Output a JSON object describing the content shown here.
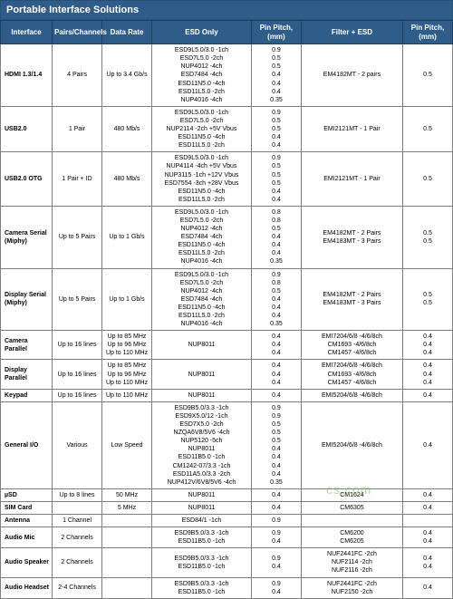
{
  "title": "Portable Interface Solutions",
  "columns": [
    "Interface",
    "Pairs/Channels",
    "Data Rate",
    "ESD Only",
    "Pin Pitch, (mm)",
    "Filter + ESD",
    "Pin Pitch, (mm)"
  ],
  "rows": [
    {
      "iface": "HDMI 1.3/1.4",
      "pairs": "4 Pairs",
      "rate": "Up to 3.4 Gb/s",
      "esd": "ESD9L5.0/3.0 -1ch\nESD7L5.0 -2ch\nNUP4012 -4ch\nESD7484 -4ch\nESD11N5.0 -4ch\nESD11L5.0 -2ch\nNUP4016 -4ch",
      "pin1": "0.9\n0.5\n0.5\n0.4\n0.4\n0.4\n0.35",
      "filter": "EM4182MT - 2 pairs",
      "pin2": "0.5"
    },
    {
      "iface": "USB2.0",
      "pairs": "1 Pair",
      "rate": "480 Mb/s",
      "esd": "ESD9L5.0/3.0 -1ch\nESD7L5.0 -2ch\nNUP2114 -2ch +5V Vbus\nESD11N5.0 -4ch\nESD11L5.0 -2ch",
      "pin1": "0.9\n0.5\n0.5\n0.4\n0.4",
      "filter": "EMI2121MT - 1 Pair",
      "pin2": "0.5"
    },
    {
      "iface": "USB2.0 OTG",
      "pairs": "1 Pair + ID",
      "rate": "480 Mb/s",
      "esd": "ESD9L5.0/3.0 -1ch\nNUP4114 -4ch +5V Vbus\nNUP3115 -1ch +12V Vbus\nESD7554 -3ch +28V Vbus\nESD11N5.0 -4ch\nESD11L5.0 -2ch",
      "pin1": "0.9\n0.5\n0.5\n0.5\n0.4\n0.4",
      "filter": "EMI2121MT - 1 Pair",
      "pin2": "0.5"
    },
    {
      "iface": "Camera Serial\n(Miphy)",
      "pairs": "Up to 5 Pairs",
      "rate": "Up to 1 Gb/s",
      "esd": "ESD9L5.0/3.0 -1ch\nESD7L5.0 -2ch\nNUP4012 -4ch\nESD7484 -4ch\nESD11N5.0 -4ch\nESD11L5.0 -2ch\nNUP4016 -4ch",
      "pin1": "0.8\n0.8\n0.5\n0.4\n0.4\n0.4\n0.35",
      "filter": "EM4182MT - 2 Pairs\nEM4183MT - 3 Pairs",
      "pin2": "0.5\n0.5"
    },
    {
      "iface": "Display Serial\n(Miphy)",
      "pairs": "Up to 5 Pairs",
      "rate": "Up to 1 Gb/s",
      "esd": "ESD9L5.0/3.0 -1ch\nESD7L5.0 -2ch\nNUP4012 -4ch\nESD7484 -4ch\nESD11N5.0 -4ch\nESD11L5.0 -2ch\nNUP4016 -4ch",
      "pin1": "0.9\n0.8\n0.5\n0.4\n0.4\n0.4\n0.35",
      "filter": "EM4182MT - 2 Pairs\nEM4183MT - 3 Pairs",
      "pin2": "0.5\n0.5"
    },
    {
      "iface": "Camera Parallel",
      "pairs": "Up to 16 lines",
      "rate": "Up to 85 MHz\nUp to 96 MHz\nUp to 110 MHz",
      "esd": "NUP8011",
      "pin1": "0.4\n0.4\n0.4",
      "filter": "EMI7204/6/8 -4/6/8ch\nCM1693 -4/6/8ch\nCM1457 -4/6/8ch",
      "pin2": "0.4\n0.4\n0.4"
    },
    {
      "iface": "Display Parallel",
      "pairs": "Up to 16 lines",
      "rate": "Up to 85 MHz\nUp to 96 MHz\nUp to 110 MHz",
      "esd": "NUP8011",
      "pin1": "0.4\n0.4\n0.4",
      "filter": "EMI7204/6/8 -4/6/8ch\nCM1693 -4/6/8ch\nCM1457 -4/6/8ch",
      "pin2": "0.4\n0.4\n0.4"
    },
    {
      "iface": "Keypad",
      "pairs": "Up to 16 lines",
      "rate": "Up to 110 MHz",
      "esd": "NUP8011",
      "pin1": "0.4",
      "filter": "EMI5204/6/8 -4/6/8ch",
      "pin2": "0.4"
    },
    {
      "iface": "General I/O",
      "pairs": "Various",
      "rate": "Low Speed",
      "esd": "ESD9B5.0/3.3 -1ch\nESD9X5.0/12 -1ch\nESD7X5.0 -2ch\nNZQA6V8/5V6 -4ch\nNUP5120 -5ch\nNUP8011\nESD11B5.0 -1ch\nCM1242-07/3.3 -1ch\nESD11A5.0/3.3 -2ch\nNUP412V/6V8/5V6 -4ch",
      "pin1": "0.9\n0.9\n0.5\n0.5\n0.5\n0.4\n0.4\n0.4\n0.4\n0.35",
      "filter": "EMI5204/6/8 -4/6/8ch",
      "pin2": "0.4"
    },
    {
      "iface": "µSD",
      "pairs": "Up to 8 lines",
      "rate": "50 MHz",
      "esd": "NUP8011",
      "pin1": "0.4",
      "filter": "CM1624",
      "pin2": "0.4"
    },
    {
      "iface": "SIM Card",
      "pairs": "",
      "rate": "5 MHz",
      "esd": "NUP8011",
      "pin1": "0.4",
      "filter": "CM6305",
      "pin2": "0.4"
    },
    {
      "iface": "Antenna",
      "pairs": "1 Channel",
      "rate": "",
      "esd": "ESD84/1 -1ch",
      "pin1": "0.9",
      "filter": "",
      "pin2": ""
    },
    {
      "iface": "Audio Mic",
      "pairs": "2 Channels",
      "rate": "",
      "esd": "ESD9B5.0/3.3 -1ch\nESD11B5.0 -1ch",
      "pin1": "0.9\n0.4",
      "filter": "CM6200\nCM6205",
      "pin2": "0.4\n0.4"
    },
    {
      "iface": "Audio Speaker",
      "pairs": "2 Channels",
      "rate": "",
      "esd": "ESD9B5.0/3.3 -1ch\nESD11B5.0 -1ch",
      "pin1": "0.9\n0.4",
      "filter": "NUF2441FC -2ch\nNUF2114 -2ch\nNUF2116 -2ch",
      "pin2": "0.4\n0.4\n"
    },
    {
      "iface": "Audio Headset",
      "pairs": "2-4 Channels",
      "rate": "",
      "esd": "ESD9B5.0/3.3 -1ch\nESD11B5.0 -1ch",
      "pin1": "0.9\n0.4",
      "filter": "NUF2441FC -2ch\nNUF2150 -2ch",
      "pin2": "0.4\n"
    }
  ],
  "watermark": "cs.com"
}
